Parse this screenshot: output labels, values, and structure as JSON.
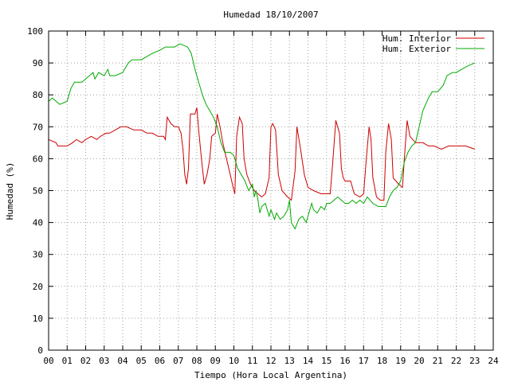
{
  "chart_data": {
    "type": "line",
    "title": "Humedad 18/10/2007",
    "xlabel": "Tiempo (Hora Local Argentina)",
    "ylabel": "Humedad (%)",
    "xlim": [
      0,
      24
    ],
    "ylim": [
      0,
      100
    ],
    "x_ticks": [
      "00",
      "01",
      "02",
      "03",
      "04",
      "05",
      "06",
      "07",
      "08",
      "09",
      "10",
      "11",
      "12",
      "13",
      "14",
      "15",
      "16",
      "17",
      "18",
      "19",
      "20",
      "21",
      "22",
      "23",
      "24"
    ],
    "y_ticks": [
      "0",
      "10",
      "20",
      "30",
      "40",
      "50",
      "60",
      "70",
      "80",
      "90",
      "100"
    ],
    "grid": true,
    "legend_position": "top-right",
    "series": [
      {
        "name": "Hum. Interior",
        "color": "#cc0000",
        "points": [
          [
            0.0,
            66
          ],
          [
            0.4,
            65
          ],
          [
            0.5,
            64
          ],
          [
            1.0,
            64
          ],
          [
            1.3,
            65
          ],
          [
            1.5,
            66
          ],
          [
            1.8,
            65
          ],
          [
            2.0,
            66
          ],
          [
            2.3,
            67
          ],
          [
            2.6,
            66
          ],
          [
            2.8,
            67
          ],
          [
            3.1,
            68
          ],
          [
            3.3,
            68
          ],
          [
            3.6,
            69
          ],
          [
            3.9,
            70
          ],
          [
            4.2,
            70
          ],
          [
            4.6,
            69
          ],
          [
            5.0,
            69
          ],
          [
            5.3,
            68
          ],
          [
            5.6,
            68
          ],
          [
            5.9,
            67
          ],
          [
            6.2,
            67
          ],
          [
            6.3,
            66
          ],
          [
            6.4,
            73
          ],
          [
            6.6,
            71
          ],
          [
            6.8,
            70
          ],
          [
            7.0,
            70
          ],
          [
            7.15,
            68
          ],
          [
            7.25,
            63
          ],
          [
            7.35,
            55
          ],
          [
            7.45,
            52
          ],
          [
            7.55,
            57
          ],
          [
            7.65,
            74
          ],
          [
            7.9,
            74
          ],
          [
            8.0,
            76
          ],
          [
            8.1,
            69
          ],
          [
            8.25,
            60
          ],
          [
            8.4,
            52
          ],
          [
            8.55,
            55
          ],
          [
            8.7,
            60
          ],
          [
            8.8,
            67
          ],
          [
            9.0,
            68
          ],
          [
            9.1,
            74
          ],
          [
            9.25,
            70
          ],
          [
            9.4,
            65
          ],
          [
            9.6,
            60
          ],
          [
            9.8,
            55
          ],
          [
            10.0,
            50
          ],
          [
            10.05,
            49
          ],
          [
            10.15,
            67
          ],
          [
            10.3,
            73
          ],
          [
            10.45,
            71
          ],
          [
            10.55,
            60
          ],
          [
            10.7,
            55
          ],
          [
            10.9,
            52
          ],
          [
            11.1,
            50
          ],
          [
            11.3,
            49
          ],
          [
            11.5,
            48
          ],
          [
            11.7,
            49
          ],
          [
            11.9,
            54
          ],
          [
            12.0,
            70
          ],
          [
            12.1,
            71
          ],
          [
            12.25,
            69
          ],
          [
            12.4,
            55
          ],
          [
            12.6,
            50
          ],
          [
            12.9,
            48
          ],
          [
            13.1,
            47
          ],
          [
            13.3,
            56
          ],
          [
            13.4,
            70
          ],
          [
            13.6,
            63
          ],
          [
            13.8,
            55
          ],
          [
            14.0,
            51
          ],
          [
            14.3,
            50
          ],
          [
            14.7,
            49
          ],
          [
            15.0,
            49
          ],
          [
            15.2,
            49
          ],
          [
            15.35,
            60
          ],
          [
            15.5,
            72
          ],
          [
            15.7,
            68
          ],
          [
            15.8,
            57
          ],
          [
            15.9,
            54
          ],
          [
            16.0,
            53
          ],
          [
            16.3,
            53
          ],
          [
            16.5,
            49
          ],
          [
            16.8,
            48
          ],
          [
            17.0,
            49
          ],
          [
            17.15,
            60
          ],
          [
            17.3,
            70
          ],
          [
            17.4,
            66
          ],
          [
            17.5,
            54
          ],
          [
            17.7,
            48
          ],
          [
            17.9,
            47
          ],
          [
            18.1,
            47
          ],
          [
            18.2,
            62
          ],
          [
            18.35,
            71
          ],
          [
            18.5,
            66
          ],
          [
            18.6,
            54
          ],
          [
            18.75,
            53
          ],
          [
            18.9,
            52
          ],
          [
            19.1,
            51
          ],
          [
            19.2,
            60
          ],
          [
            19.35,
            72
          ],
          [
            19.5,
            67
          ],
          [
            19.8,
            65
          ],
          [
            20.2,
            65
          ],
          [
            20.5,
            64
          ],
          [
            20.8,
            64
          ],
          [
            21.2,
            63
          ],
          [
            21.6,
            64
          ],
          [
            22.0,
            64
          ],
          [
            22.5,
            64
          ],
          [
            23.0,
            63
          ]
        ]
      },
      {
        "name": "Hum. Exterior",
        "color": "#00aa00",
        "points": [
          [
            0.0,
            78
          ],
          [
            0.2,
            79
          ],
          [
            0.4,
            78
          ],
          [
            0.6,
            77
          ],
          [
            1.0,
            78
          ],
          [
            1.2,
            82
          ],
          [
            1.4,
            84
          ],
          [
            1.8,
            84
          ],
          [
            2.0,
            85
          ],
          [
            2.2,
            86
          ],
          [
            2.4,
            87
          ],
          [
            2.5,
            85
          ],
          [
            2.7,
            87
          ],
          [
            3.0,
            86
          ],
          [
            3.2,
            88
          ],
          [
            3.3,
            86
          ],
          [
            3.6,
            86
          ],
          [
            4.0,
            87
          ],
          [
            4.3,
            90
          ],
          [
            4.5,
            91
          ],
          [
            5.0,
            91
          ],
          [
            5.3,
            92
          ],
          [
            5.6,
            93
          ],
          [
            6.0,
            94
          ],
          [
            6.3,
            95
          ],
          [
            6.8,
            95
          ],
          [
            7.1,
            96
          ],
          [
            7.5,
            95
          ],
          [
            7.7,
            93
          ],
          [
            7.9,
            88
          ],
          [
            8.1,
            84
          ],
          [
            8.3,
            80
          ],
          [
            8.5,
            77
          ],
          [
            8.7,
            75
          ],
          [
            8.9,
            73
          ],
          [
            9.1,
            70
          ],
          [
            9.3,
            65
          ],
          [
            9.5,
            62
          ],
          [
            9.8,
            62
          ],
          [
            10.0,
            61
          ],
          [
            10.2,
            57
          ],
          [
            10.4,
            55
          ],
          [
            10.6,
            53
          ],
          [
            10.8,
            50
          ],
          [
            11.0,
            52
          ],
          [
            11.1,
            48
          ],
          [
            11.2,
            50
          ],
          [
            11.3,
            47
          ],
          [
            11.4,
            43
          ],
          [
            11.5,
            45
          ],
          [
            11.7,
            46
          ],
          [
            11.9,
            42
          ],
          [
            12.0,
            44
          ],
          [
            12.2,
            41
          ],
          [
            12.3,
            43
          ],
          [
            12.5,
            41
          ],
          [
            12.7,
            42
          ],
          [
            12.9,
            44
          ],
          [
            13.0,
            47
          ],
          [
            13.1,
            40
          ],
          [
            13.3,
            38
          ],
          [
            13.5,
            41
          ],
          [
            13.7,
            42
          ],
          [
            13.9,
            40
          ],
          [
            14.1,
            44
          ],
          [
            14.2,
            46
          ],
          [
            14.3,
            44
          ],
          [
            14.5,
            43
          ],
          [
            14.7,
            45
          ],
          [
            14.9,
            44
          ],
          [
            15.0,
            46
          ],
          [
            15.2,
            46
          ],
          [
            15.4,
            47
          ],
          [
            15.6,
            48
          ],
          [
            15.8,
            47
          ],
          [
            16.0,
            46
          ],
          [
            16.2,
            46
          ],
          [
            16.4,
            47
          ],
          [
            16.6,
            46
          ],
          [
            16.8,
            47
          ],
          [
            17.0,
            46
          ],
          [
            17.2,
            48
          ],
          [
            17.5,
            46
          ],
          [
            17.8,
            45
          ],
          [
            18.2,
            45
          ],
          [
            18.4,
            48
          ],
          [
            18.6,
            50
          ],
          [
            18.8,
            51
          ],
          [
            19.0,
            53
          ],
          [
            19.2,
            59
          ],
          [
            19.4,
            62
          ],
          [
            19.6,
            64
          ],
          [
            19.8,
            65
          ],
          [
            20.0,
            70
          ],
          [
            20.2,
            75
          ],
          [
            20.5,
            79
          ],
          [
            20.7,
            81
          ],
          [
            21.0,
            81
          ],
          [
            21.3,
            83
          ],
          [
            21.5,
            86
          ],
          [
            21.8,
            87
          ],
          [
            22.0,
            87
          ],
          [
            22.3,
            88
          ],
          [
            22.6,
            89
          ],
          [
            23.0,
            90
          ]
        ]
      }
    ]
  }
}
